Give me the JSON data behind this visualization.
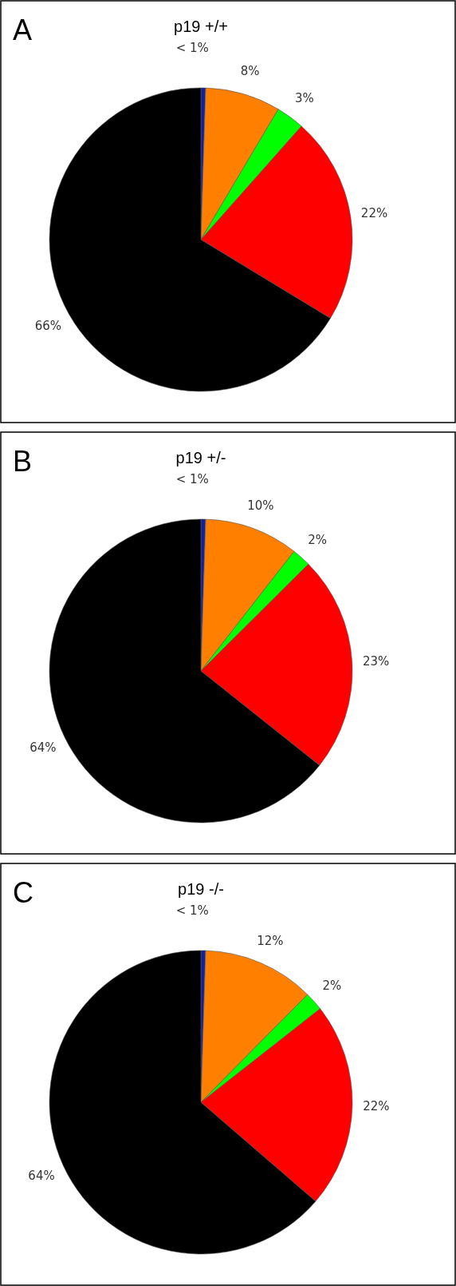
{
  "chart_data": [
    {
      "type": "pie",
      "title": "p19 +/+",
      "annotations": [
        "A"
      ],
      "categories": [
        null,
        null,
        null,
        null,
        null
      ],
      "values": [
        0.5,
        8,
        3,
        22,
        66
      ],
      "value_labels": [
        "< 1%",
        "8%",
        "3%",
        "22%",
        "66%"
      ],
      "colors": [
        "#1020a0",
        "#ff8000",
        "#00ff00",
        "#ff0000",
        "#000000"
      ]
    },
    {
      "type": "pie",
      "title": "p19 +/-",
      "annotations": [
        "B"
      ],
      "categories": [
        null,
        null,
        null,
        null,
        null
      ],
      "values": [
        0.5,
        10,
        2,
        23,
        64
      ],
      "value_labels": [
        "< 1%",
        "10%",
        "2%",
        "23%",
        "64%"
      ],
      "colors": [
        "#1020a0",
        "#ff8000",
        "#00ff00",
        "#ff0000",
        "#000000"
      ]
    },
    {
      "type": "pie",
      "title": "p19 -/-",
      "annotations": [
        "C"
      ],
      "categories": [
        null,
        null,
        null,
        null,
        null
      ],
      "values": [
        0.5,
        12,
        2,
        22,
        64
      ],
      "value_labels": [
        "< 1%",
        "12%",
        "2%",
        "22%",
        "64%"
      ],
      "colors": [
        "#1020a0",
        "#ff8000",
        "#00ff00",
        "#ff0000",
        "#000000"
      ]
    }
  ]
}
